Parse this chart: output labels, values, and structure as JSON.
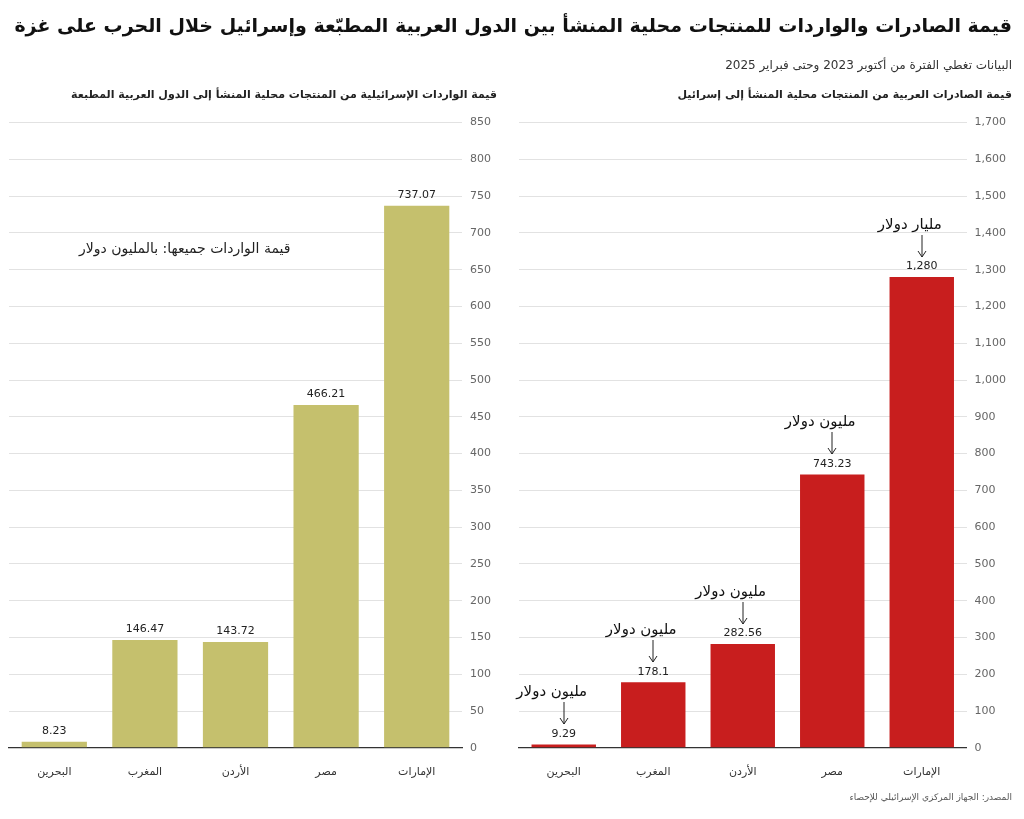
{
  "chart_data": [
    {
      "type": "bar",
      "title": "قيمة الصادرات والواردات للمنتجات محلية المنشأ بين الدول العربية المطبّعة وإسرائيل خلال الحرب على غزة",
      "subtitle": "البيانات تغطي الفترة من أكتوبر 2023 وحتى فبراير 2025",
      "ylabel": "قيمة الصادرات العربية من المنتجات محلية المنشأ إلى إسرائيل",
      "categories": [
        "البحرين",
        "المغرب",
        "الأردن",
        "مصر",
        "الإمارات"
      ],
      "values": [
        9.29,
        178.1,
        282.56,
        743.23,
        1280
      ],
      "color": "#c81e1e",
      "value_labels": [
        "9.29",
        "178.1",
        "282.56",
        "743.23",
        "1,280"
      ],
      "ylim": [
        0,
        1700
      ],
      "yticks": [
        0,
        100,
        200,
        300,
        400,
        500,
        600,
        700,
        800,
        900,
        {
          "value": 1000,
          "label": "1,000"
        },
        {
          "value": 1100,
          "label": "1,100"
        },
        {
          "value": 1200,
          "label": "1,200"
        },
        {
          "value": 1300,
          "label": "1,300"
        },
        {
          "value": 1400,
          "label": "1,400"
        },
        {
          "value": 1500,
          "label": "1,500"
        },
        {
          "value": 1600,
          "label": "1,600"
        },
        {
          "value": 1700,
          "label": "1,700"
        }
      ],
      "grid": "y",
      "annotations": [
        {
          "text": "مليون دولار",
          "x": "البحرين",
          "y": 9.29
        },
        {
          "text": "مليون دولار",
          "x": "المغرب",
          "y": 178.1
        },
        {
          "text": "مليون دولار",
          "x": "الأردن",
          "y": 282.56
        },
        {
          "text": "مليون دولار",
          "x": "مصر",
          "y": 743.23
        },
        {
          "text": "مليار دولار",
          "x": "الإمارات",
          "y": 1280
        },
        "المصدر: الجهاز المركزي الإسرائيلي للإحصاء"
      ]
    },
    {
      "type": "bar",
      "ylabel": "قيمة الواردات الإسرائيلية من المنتجات محلية المنشأ إلى الدول العربية المطبعة",
      "categories": [
        "البحرين",
        "المغرب",
        "الأردن",
        "مصر",
        "الإمارات"
      ],
      "values": [
        8.23,
        146.47,
        143.72,
        466.21,
        737.07
      ],
      "color": "#c5c06d",
      "data_labels": true,
      "ylim": [
        0,
        850
      ],
      "yticks": [
        0,
        50,
        100,
        150,
        200,
        250,
        300,
        350,
        400,
        450,
        500,
        550,
        600,
        650,
        700,
        750,
        800,
        850
      ],
      "grid": "y",
      "annotations": [
        "قيمة الواردات جميعها: بالمليون دولار"
      ]
    }
  ]
}
